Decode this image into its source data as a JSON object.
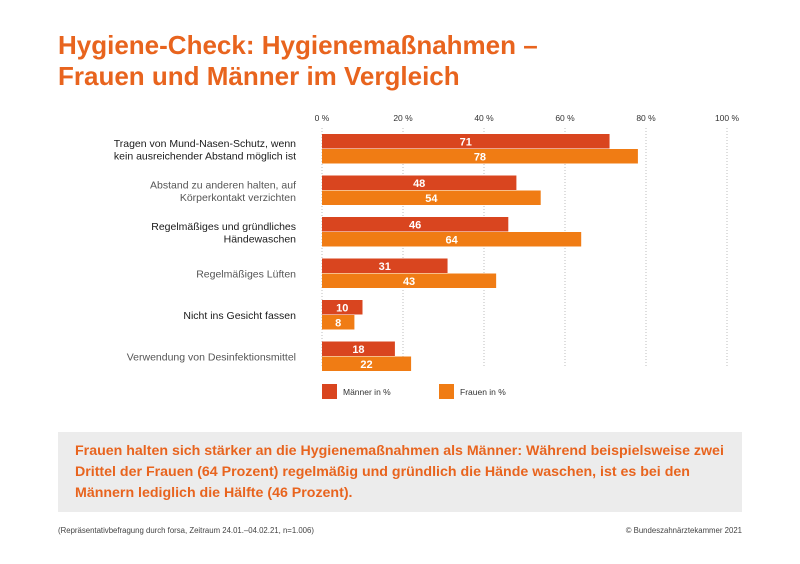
{
  "title_line1": "Hygiene-Check: Hygienemaßnahmen –",
  "title_line2": "Frauen und Männer im Vergleich",
  "chart_data": {
    "type": "bar",
    "orientation": "horizontal",
    "categories": [
      [
        "Tragen von Mund-Nasen-Schutz, wenn",
        "kein ausreichender Abstand möglich ist"
      ],
      [
        "Abstand zu anderen halten, auf",
        "Körperkontakt verzichten"
      ],
      [
        "Regelmäßiges und gründliches",
        "Händewaschen"
      ],
      [
        "Regelmäßiges Lüften"
      ],
      [
        "Nicht ins Gesicht fassen"
      ],
      [
        "Verwendung von Desinfektionsmittel"
      ]
    ],
    "category_emphasis": [
      true,
      false,
      true,
      false,
      true,
      false
    ],
    "series": [
      {
        "name": "Männer in %",
        "color": "#d9451f",
        "values": [
          71,
          48,
          46,
          31,
          10,
          18
        ]
      },
      {
        "name": "Frauen in %",
        "color": "#f07c14",
        "values": [
          78,
          54,
          64,
          43,
          8,
          22
        ]
      }
    ],
    "xlim": [
      0,
      100
    ],
    "x_ticks": [
      "0 %",
      "20 %",
      "40 %",
      "60 %",
      "80 %",
      "100 %"
    ],
    "x_tick_values": [
      0,
      20,
      40,
      60,
      80,
      100
    ],
    "data_labels": true,
    "grid": "vertical dotted",
    "legend": "bottom"
  },
  "callout_text": "Frauen halten sich stärker an die Hygienemaßnahmen als Männer: Während beispielsweise zwei Drittel der Frauen (64 Prozent) regelmäßig und gründlich die Hände waschen, ist es bei den Männern lediglich die Hälfte (46 Prozent).",
  "footnote": "(Repräsentativbefragung durch forsa, Zeitraum 24.01.–04.02.21, n=1.006)",
  "copyright": "© Bundeszahnärztekammer 2021"
}
